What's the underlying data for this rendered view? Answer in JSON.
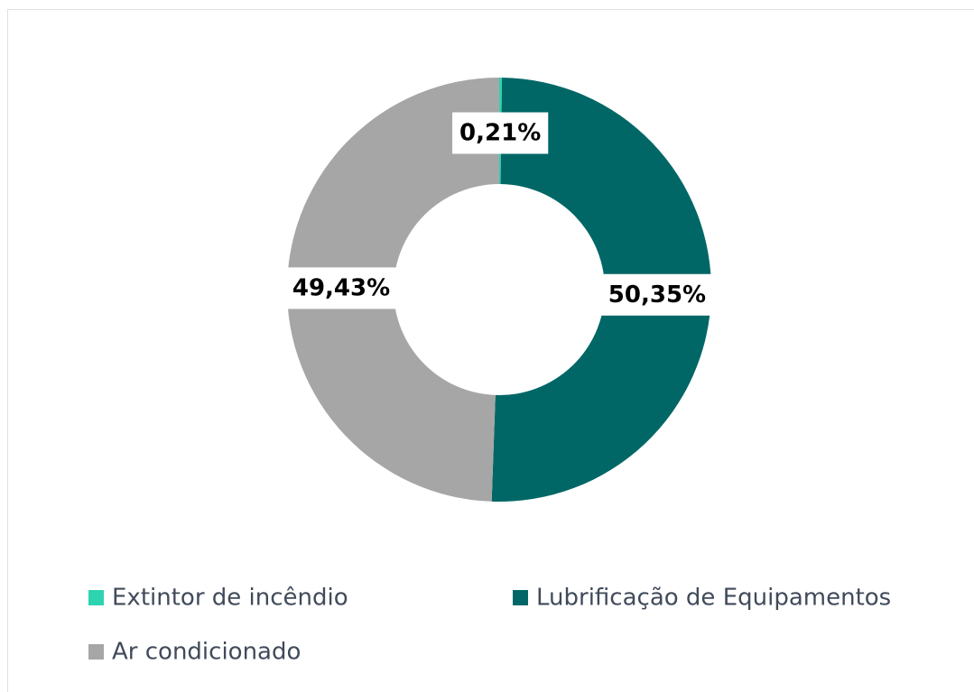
{
  "chart_data": {
    "type": "donut",
    "categories": [
      "Extintor de incêndio",
      "Lubrificação de Equipamentos",
      "Ar condicionado"
    ],
    "values": [
      0.21,
      50.35,
      49.43
    ],
    "value_labels": [
      "0,21%",
      "50,35%",
      "49,43%"
    ],
    "colors": [
      "#2ed3b0",
      "#006766",
      "#a6a6a6"
    ],
    "legend": "bottom"
  }
}
